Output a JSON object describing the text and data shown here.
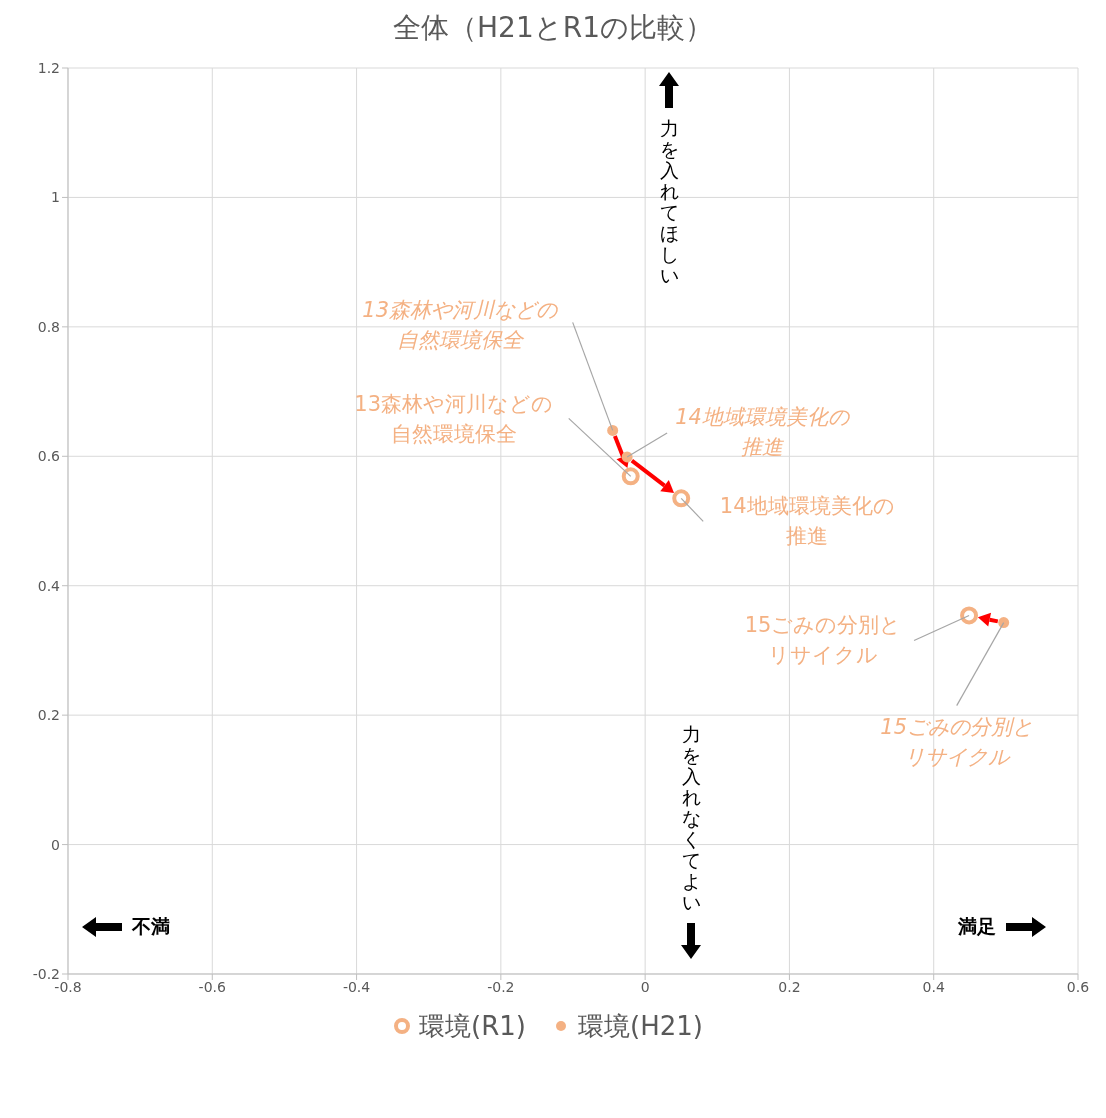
{
  "chart_data": {
    "type": "scatter",
    "title": "全体（H21とR1の比較）",
    "xlim": [
      -0.8,
      0.6
    ],
    "xticks": [
      -0.8,
      -0.6,
      -0.4,
      -0.2,
      0,
      0.2,
      0.4,
      0.6
    ],
    "ylim": [
      -0.2,
      1.2
    ],
    "yticks": [
      -0.2,
      0,
      0.2,
      0.4,
      0.6,
      0.8,
      1,
      1.2
    ],
    "grid": true,
    "legend": "bottom",
    "marker": "circle",
    "series": [
      {
        "name": "環境(R1)",
        "color": "#f4b183",
        "x": [
          -0.02,
          0.05,
          0.449
        ],
        "values": [
          0.569,
          0.535,
          0.354
        ]
      },
      {
        "name": "環境(H21)",
        "color": "#f4b183",
        "x": [
          -0.045,
          -0.025,
          0.497
        ],
        "values": [
          0.64,
          0.599,
          0.343
        ]
      }
    ],
    "annotations": [
      {
        "text": "13森林や河川などの自然環境保全",
        "x": -0.02,
        "y": 0.569
      },
      {
        "text": "13森林や河川などの自然環境保全",
        "x": -0.045,
        "y": 0.64
      },
      {
        "text": "14地域環境美化の推進",
        "x": 0.05,
        "y": 0.535
      },
      {
        "text": "14地域環境美化の推進",
        "x": -0.025,
        "y": 0.599
      },
      {
        "text": "15ごみの分別とリサイクル",
        "x": 0.449,
        "y": 0.354
      },
      {
        "text": "15ごみの分別とリサイクル",
        "x": 0.497,
        "y": 0.343
      },
      "力を入れてほしい",
      "力を入れなくてよい",
      "不満",
      "満足"
    ]
  }
}
